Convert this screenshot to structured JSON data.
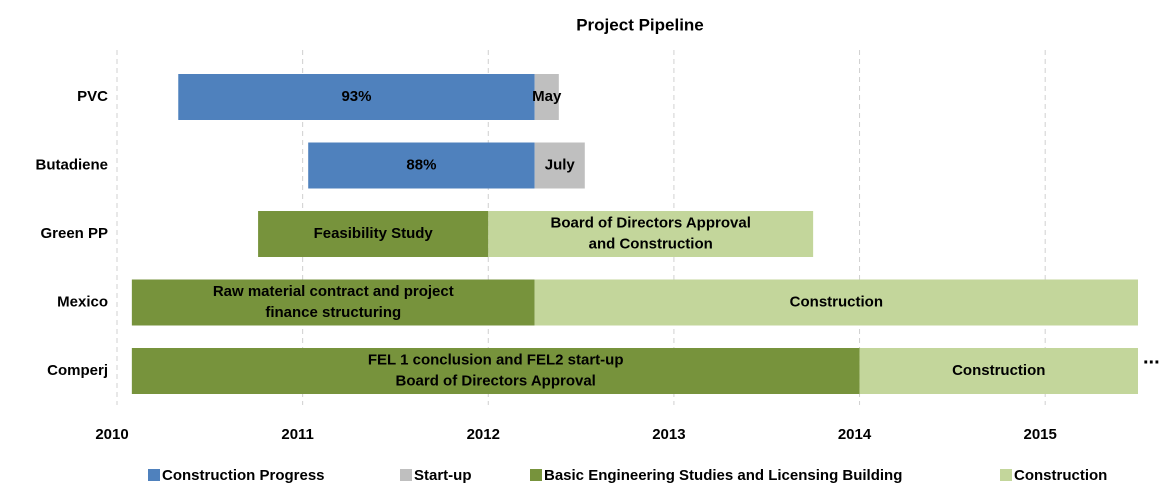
{
  "chart_data": {
    "type": "gantt",
    "title": "Project Pipeline",
    "categories": [
      "PVC",
      "Butadiene",
      "Green PP",
      "Mexico",
      "Comperj"
    ],
    "series": [
      {
        "name": "Construction Progress",
        "color": "#4f81bd",
        "values": [
          [
            2010.33,
            2012.25
          ],
          [
            2011.03,
            2012.25
          ],
          null,
          null,
          null
        ],
        "labels": [
          [
            "93%"
          ],
          [
            "88%"
          ],
          null,
          null,
          null
        ]
      },
      {
        "name": "Start-up",
        "color": "#bfbfbf",
        "values": [
          [
            2012.25,
            2012.38
          ],
          [
            2012.25,
            2012.52
          ],
          null,
          null,
          null
        ],
        "labels": [
          [
            "May"
          ],
          [
            "July"
          ],
          null,
          null,
          null
        ]
      },
      {
        "name": "Basic Engineering Studies and Licensing Building",
        "color": "#77933c",
        "values": [
          null,
          null,
          [
            2010.76,
            2012
          ],
          [
            2010.08,
            2012.25
          ],
          [
            2010.08,
            2014
          ]
        ],
        "labels": [
          null,
          null,
          [
            "Feasibility Study"
          ],
          [
            "Raw material contract and project",
            "finance structuring"
          ],
          [
            "FEL 1 conclusion  and FEL2 start-up",
            "Board of Directors Approval"
          ]
        ]
      },
      {
        "name": "Construction",
        "color": "#c3d69b",
        "values": [
          null,
          null,
          [
            2012,
            2013.75
          ],
          [
            2012.25,
            2015.5
          ],
          [
            2014,
            2015.5
          ]
        ],
        "labels": [
          null,
          null,
          [
            "Board of Directors Approval",
            "and Construction"
          ],
          [
            "Construction"
          ],
          [
            "Construction"
          ]
        ]
      }
    ],
    "xlim": [
      2010,
      2015.5
    ],
    "xticks": [
      2010,
      2011,
      2012,
      2013,
      2014,
      2015
    ],
    "grid": true,
    "annotation": "...",
    "legend": "bottom"
  }
}
